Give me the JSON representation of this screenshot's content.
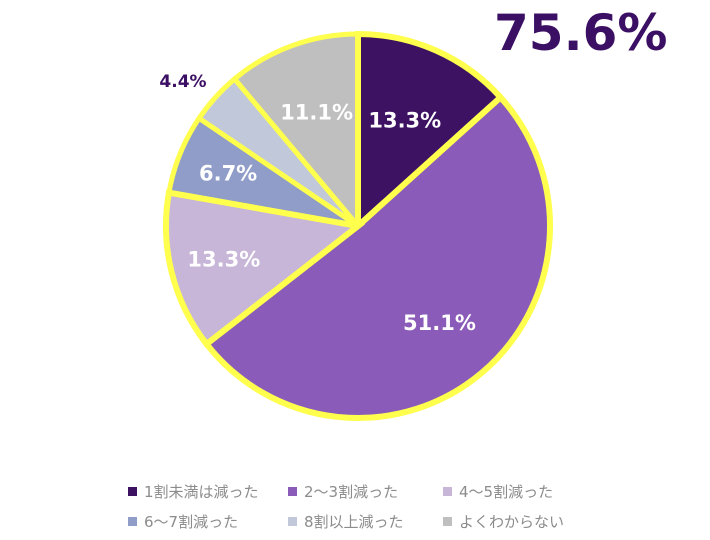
{
  "headline": "75.6%",
  "chart_data": {
    "type": "pie",
    "start_angle_deg": 0,
    "direction": "clockwise",
    "highlight_color": "#ffff4d",
    "slices": [
      {
        "label": "1割未満は減った",
        "value": 13.3,
        "display": "13.3%",
        "color": "#3e1263",
        "highlighted": true
      },
      {
        "label": "2～3割減った",
        "value": 51.1,
        "display": "51.1%",
        "color": "#8a5bb8",
        "highlighted": true
      },
      {
        "label": "4～5割減った",
        "value": 13.3,
        "display": "13.3%",
        "color": "#c7b6d8",
        "highlighted": true
      },
      {
        "label": "6～7割減った",
        "value": 6.7,
        "display": "6.7%",
        "color": "#8f9dc8",
        "highlighted": false
      },
      {
        "label": "8割以上減った",
        "value": 4.4,
        "display": "4.4%",
        "color": "#c1c8da",
        "highlighted": false
      },
      {
        "label": "よくわからない",
        "value": 11.1,
        "display": "11.1%",
        "color": "#bfbfbf",
        "highlighted": false
      }
    ],
    "legend_position": "bottom"
  }
}
